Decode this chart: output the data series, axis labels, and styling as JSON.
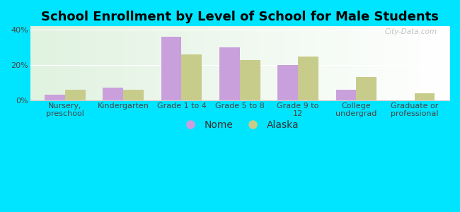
{
  "title": "School Enrollment by Level of School for Male Students",
  "categories": [
    "Nursery,\npreschool",
    "Kindergarten",
    "Grade 1 to 4",
    "Grade 5 to 8",
    "Grade 9 to\n12",
    "College\nundergrad",
    "Graduate or\nprofessional"
  ],
  "nome_values": [
    3.0,
    7.0,
    36.0,
    30.0,
    20.0,
    6.0,
    0.0
  ],
  "alaska_values": [
    6.0,
    6.0,
    26.0,
    23.0,
    25.0,
    13.0,
    4.0
  ],
  "nome_color": "#c9a0dc",
  "alaska_color": "#c8cc8a",
  "background_color": "#00e5ff",
  "ylim": [
    0,
    42
  ],
  "yticks": [
    0,
    20,
    40
  ],
  "ytick_labels": [
    "0%",
    "20%",
    "40%"
  ],
  "bar_width": 0.35,
  "title_fontsize": 13,
  "tick_fontsize": 8,
  "legend_fontsize": 10,
  "watermark": "City-Data.com"
}
